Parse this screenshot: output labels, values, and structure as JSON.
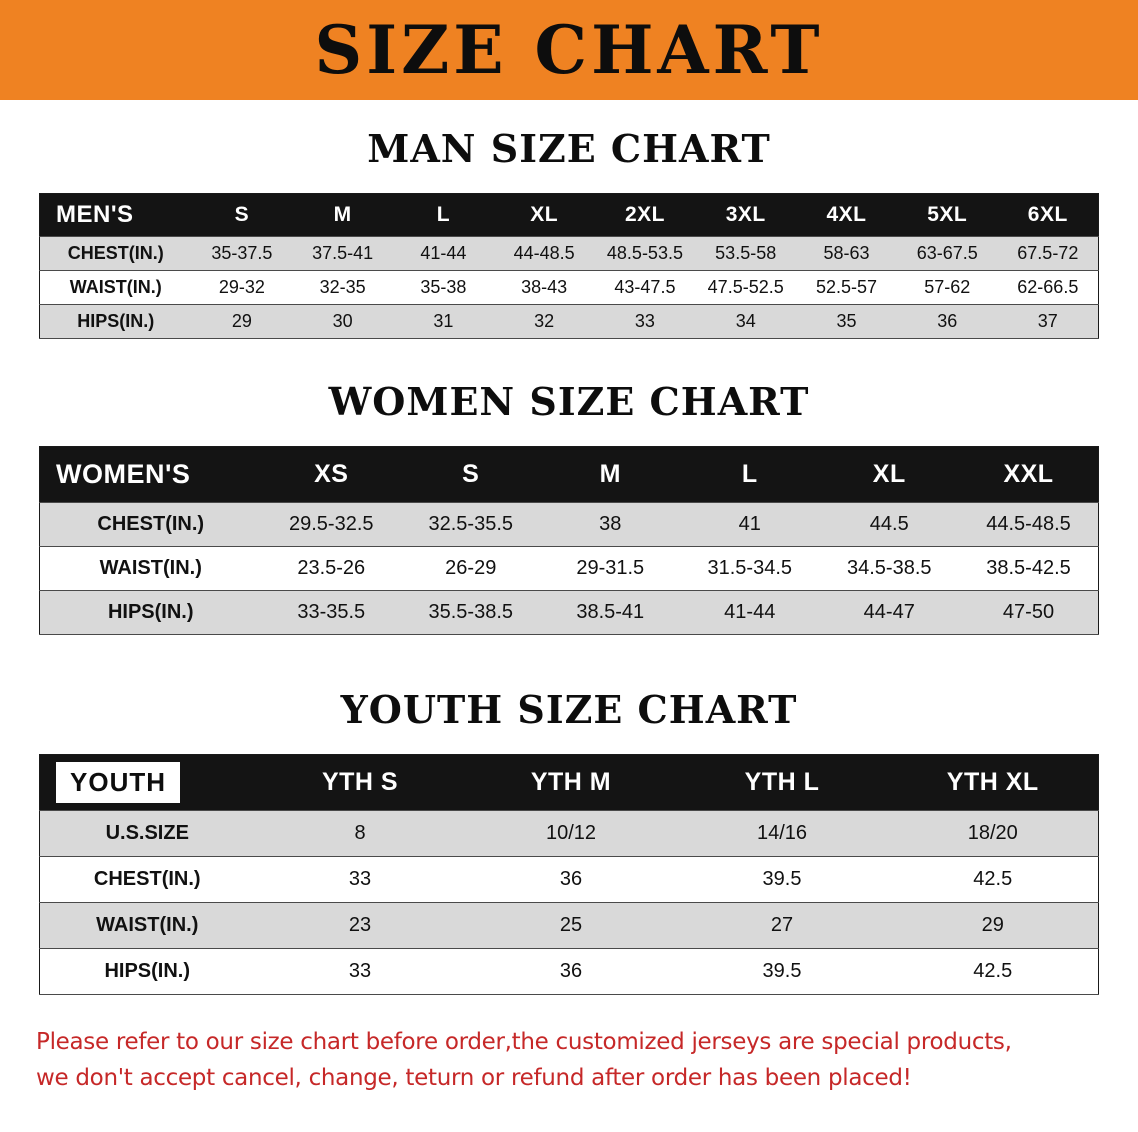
{
  "banner": {
    "title": "SIZE CHART",
    "bg_color": "#ef8222"
  },
  "sections": [
    {
      "heading": "MAN SIZE CHART",
      "table": {
        "header": [
          "MEN'S",
          "S",
          "M",
          "L",
          "XL",
          "2XL",
          "3XL",
          "4XL",
          "5XL",
          "6XL"
        ],
        "rows": [
          {
            "label": "CHEST(IN.)",
            "values": [
              "35-37.5",
              "37.5-41",
              "41-44",
              "44-48.5",
              "48.5-53.5",
              "53.5-58",
              "58-63",
              "63-67.5",
              "67.5-72"
            ]
          },
          {
            "label": "WAIST(IN.)",
            "values": [
              "29-32",
              "32-35",
              "35-38",
              "38-43",
              "43-47.5",
              "47.5-52.5",
              "52.5-57",
              "57-62",
              "62-66.5"
            ]
          },
          {
            "label": "HIPS(IN.)",
            "values": [
              "29",
              "30",
              "31",
              "32",
              "33",
              "34",
              "35",
              "36",
              "37"
            ]
          }
        ]
      }
    },
    {
      "heading": "WOMEN SIZE CHART",
      "table": {
        "header": [
          "WOMEN'S",
          "XS",
          "S",
          "M",
          "L",
          "XL",
          "XXL"
        ],
        "rows": [
          {
            "label": "CHEST(IN.)",
            "values": [
              "29.5-32.5",
              "32.5-35.5",
              "38",
              "41",
              "44.5",
              "44.5-48.5"
            ]
          },
          {
            "label": "WAIST(IN.)",
            "values": [
              "23.5-26",
              "26-29",
              "29-31.5",
              "31.5-34.5",
              "34.5-38.5",
              "38.5-42.5"
            ]
          },
          {
            "label": "HIPS(IN.)",
            "values": [
              "33-35.5",
              "35.5-38.5",
              "38.5-41",
              "41-44",
              "44-47",
              "47-50"
            ]
          }
        ]
      }
    },
    {
      "heading": "YOUTH SIZE CHART",
      "table": {
        "first_header_highlight": true,
        "header": [
          "YOUTH",
          "YTH S",
          "YTH M",
          "YTH L",
          "YTH XL"
        ],
        "rows": [
          {
            "label": "U.S.SIZE",
            "values": [
              "8",
              "10/12",
              "14/16",
              "18/20"
            ]
          },
          {
            "label": "CHEST(IN.)",
            "values": [
              "33",
              "36",
              "39.5",
              "42.5"
            ]
          },
          {
            "label": "WAIST(IN.)",
            "values": [
              "23",
              "25",
              "27",
              "29"
            ]
          },
          {
            "label": "HIPS(IN.)",
            "values": [
              "33",
              "36",
              "39.5",
              "42.5"
            ]
          }
        ]
      }
    }
  ],
  "footer": {
    "text_color": "#c62828",
    "lines": [
      "Please refer to our size chart before order,the customized jerseys are special products,",
      "we don't accept cancel, change, teturn or refund after order has been placed!"
    ]
  }
}
